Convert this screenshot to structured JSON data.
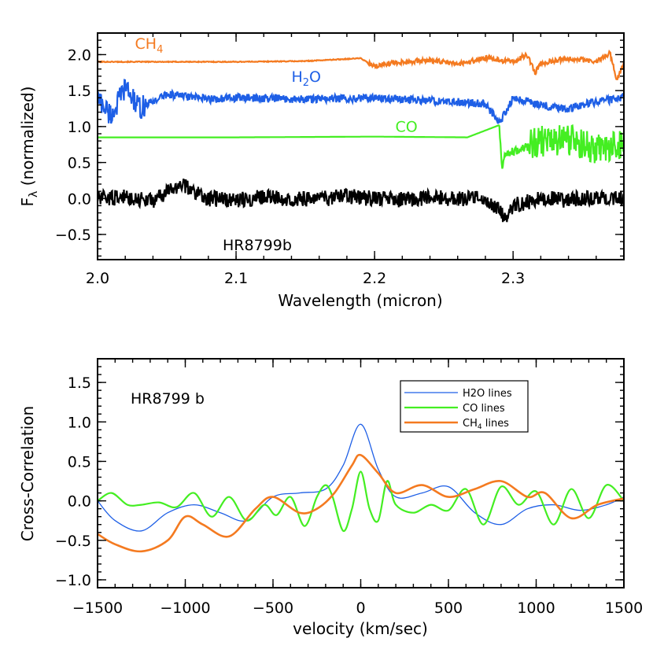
{
  "chart_data": [
    {
      "type": "line",
      "xlabel": "Wavelength (micron)",
      "ylabel": "Fλ (normalized)",
      "ylabel_main": "F",
      "ylabel_sub": "λ",
      "ylabel_rest": " (normalized)",
      "xlim": [
        2.0,
        2.38
      ],
      "ylim": [
        -0.85,
        2.3
      ],
      "xticks": [
        2.0,
        2.1,
        2.2,
        2.3
      ],
      "xtick_labels": [
        "2.0",
        "2.1",
        "2.2",
        "2.3"
      ],
      "yticks": [
        -0.5,
        0.0,
        0.5,
        1.0,
        1.5,
        2.0
      ],
      "ytick_labels": [
        "−0.5",
        "0.0",
        "0.5",
        "1.0",
        "1.5",
        "2.0"
      ],
      "annotations": [
        {
          "text": "HR8799b",
          "x": 2.15,
          "y": -0.6
        }
      ],
      "series": [
        {
          "name": "CH4",
          "label_main": "CH",
          "label_sub": "4",
          "color": "#f47a20",
          "label_x": 2.027,
          "label_y": 2.08,
          "x": [
            2.0,
            2.05,
            2.1,
            2.15,
            2.19,
            2.2,
            2.21,
            2.22,
            2.24,
            2.26,
            2.28,
            2.3,
            2.31,
            2.316,
            2.32,
            2.34,
            2.36,
            2.37,
            2.375,
            2.38
          ],
          "y": [
            1.9,
            1.9,
            1.9,
            1.91,
            1.95,
            1.83,
            1.88,
            1.9,
            1.92,
            1.87,
            1.95,
            1.9,
            2.0,
            1.75,
            1.88,
            1.95,
            1.9,
            2.02,
            1.65,
            1.88
          ]
        },
        {
          "name": "H2O",
          "label_main": "H",
          "label_sub": "2",
          "label_rest": "O",
          "color": "#1e5fe6",
          "label_x": 2.14,
          "label_y": 1.62,
          "x": [
            2.0,
            2.01,
            2.02,
            2.03,
            2.05,
            2.08,
            2.1,
            2.15,
            2.2,
            2.25,
            2.28,
            2.29,
            2.3,
            2.32,
            2.34,
            2.36,
            2.38
          ],
          "y": [
            1.4,
            1.15,
            1.55,
            1.25,
            1.45,
            1.38,
            1.4,
            1.38,
            1.4,
            1.35,
            1.32,
            1.05,
            1.4,
            1.3,
            1.25,
            1.35,
            1.4
          ]
        },
        {
          "name": "CO",
          "label_main": "CO",
          "label_sub": "",
          "color": "#44ee22",
          "label_x": 2.215,
          "label_y": 0.93,
          "x": [
            2.0,
            2.1,
            2.2,
            2.267,
            2.29,
            2.292,
            2.294,
            2.3,
            2.32,
            2.34,
            2.36,
            2.38
          ],
          "y": [
            0.85,
            0.85,
            0.86,
            0.85,
            1.02,
            0.4,
            0.6,
            0.65,
            0.8,
            0.82,
            0.7,
            0.72
          ]
        },
        {
          "name": "HR8799b",
          "color": "#000000",
          "x": [
            2.0,
            2.02,
            2.04,
            2.06,
            2.08,
            2.1,
            2.12,
            2.14,
            2.16,
            2.18,
            2.2,
            2.22,
            2.24,
            2.26,
            2.28,
            2.29,
            2.295,
            2.3,
            2.32,
            2.34,
            2.36,
            2.38
          ],
          "y": [
            0.0,
            0.02,
            -0.03,
            0.2,
            0.0,
            -0.02,
            0.02,
            0.0,
            -0.01,
            0.03,
            0.0,
            -0.02,
            0.01,
            0.0,
            0.0,
            -0.15,
            -0.3,
            -0.1,
            0.0,
            -0.02,
            0.02,
            0.0
          ]
        }
      ]
    },
    {
      "type": "line",
      "xlabel": "velocity (km/sec)",
      "ylabel": "Cross-Correlation",
      "xlim": [
        -1500,
        1500
      ],
      "ylim": [
        -1.1,
        1.8
      ],
      "xticks": [
        -1500,
        -1000,
        -500,
        0,
        500,
        1000,
        1500
      ],
      "xtick_labels": [
        "−1500",
        "−1000",
        "−500",
        "0",
        "500",
        "1000",
        "1500"
      ],
      "yticks": [
        -1.0,
        -0.5,
        0.0,
        0.5,
        1.0,
        1.5
      ],
      "ytick_labels": [
        "−1.0",
        "−0.5",
        "0.0",
        "0.5",
        "1.0",
        "1.5"
      ],
      "title_text": "HR8799 b",
      "legend": {
        "placement": "top-right"
      },
      "series": [
        {
          "name": "H2O lines",
          "legend_main": "H2O lines",
          "legend_sub": "",
          "legend_rest": "",
          "color": "#1e5fe6",
          "x": [
            -1500,
            -1400,
            -1250,
            -1100,
            -950,
            -800,
            -650,
            -500,
            -350,
            -200,
            -100,
            0,
            100,
            200,
            350,
            500,
            650,
            800,
            950,
            1100,
            1250,
            1400,
            1500
          ],
          "y": [
            0.0,
            -0.25,
            -0.38,
            -0.15,
            -0.05,
            -0.15,
            -0.25,
            0.05,
            0.1,
            0.15,
            0.45,
            0.97,
            0.4,
            0.05,
            0.1,
            0.18,
            -0.15,
            -0.3,
            -0.1,
            -0.05,
            -0.12,
            -0.05,
            0.05
          ]
        },
        {
          "name": "CO lines",
          "legend_main": "CO lines",
          "legend_sub": "",
          "legend_rest": "",
          "color": "#44ee22",
          "x": [
            -1500,
            -1420,
            -1330,
            -1250,
            -1150,
            -1050,
            -950,
            -850,
            -750,
            -650,
            -550,
            -480,
            -400,
            -320,
            -250,
            -200,
            -160,
            -100,
            -50,
            0,
            50,
            100,
            150,
            200,
            300,
            400,
            500,
            600,
            700,
            800,
            900,
            1000,
            1100,
            1200,
            1300,
            1400,
            1500
          ],
          "y": [
            0.0,
            0.1,
            -0.05,
            -0.05,
            -0.02,
            -0.08,
            0.1,
            -0.2,
            0.05,
            -0.25,
            -0.05,
            -0.18,
            0.05,
            -0.32,
            0.05,
            0.2,
            0.05,
            -0.38,
            -0.1,
            0.37,
            -0.1,
            -0.25,
            0.25,
            -0.05,
            -0.15,
            -0.05,
            -0.12,
            0.15,
            -0.3,
            0.18,
            -0.05,
            0.12,
            -0.3,
            0.15,
            -0.22,
            0.2,
            0.0
          ]
        },
        {
          "name": "CH4 lines",
          "legend_main": "CH",
          "legend_sub": "4",
          "legend_rest": " lines",
          "color": "#f47a20",
          "x": [
            -1500,
            -1400,
            -1250,
            -1100,
            -1000,
            -900,
            -750,
            -600,
            -500,
            -350,
            -250,
            -150,
            -50,
            0,
            100,
            200,
            350,
            500,
            650,
            800,
            950,
            1050,
            1200,
            1350,
            1500
          ],
          "y": [
            -0.42,
            -0.55,
            -0.64,
            -0.5,
            -0.2,
            -0.3,
            -0.45,
            -0.1,
            0.05,
            -0.15,
            -0.1,
            0.1,
            0.45,
            0.58,
            0.35,
            0.1,
            0.2,
            0.05,
            0.15,
            0.25,
            0.05,
            0.1,
            -0.22,
            -0.05,
            0.03
          ]
        }
      ]
    }
  ]
}
